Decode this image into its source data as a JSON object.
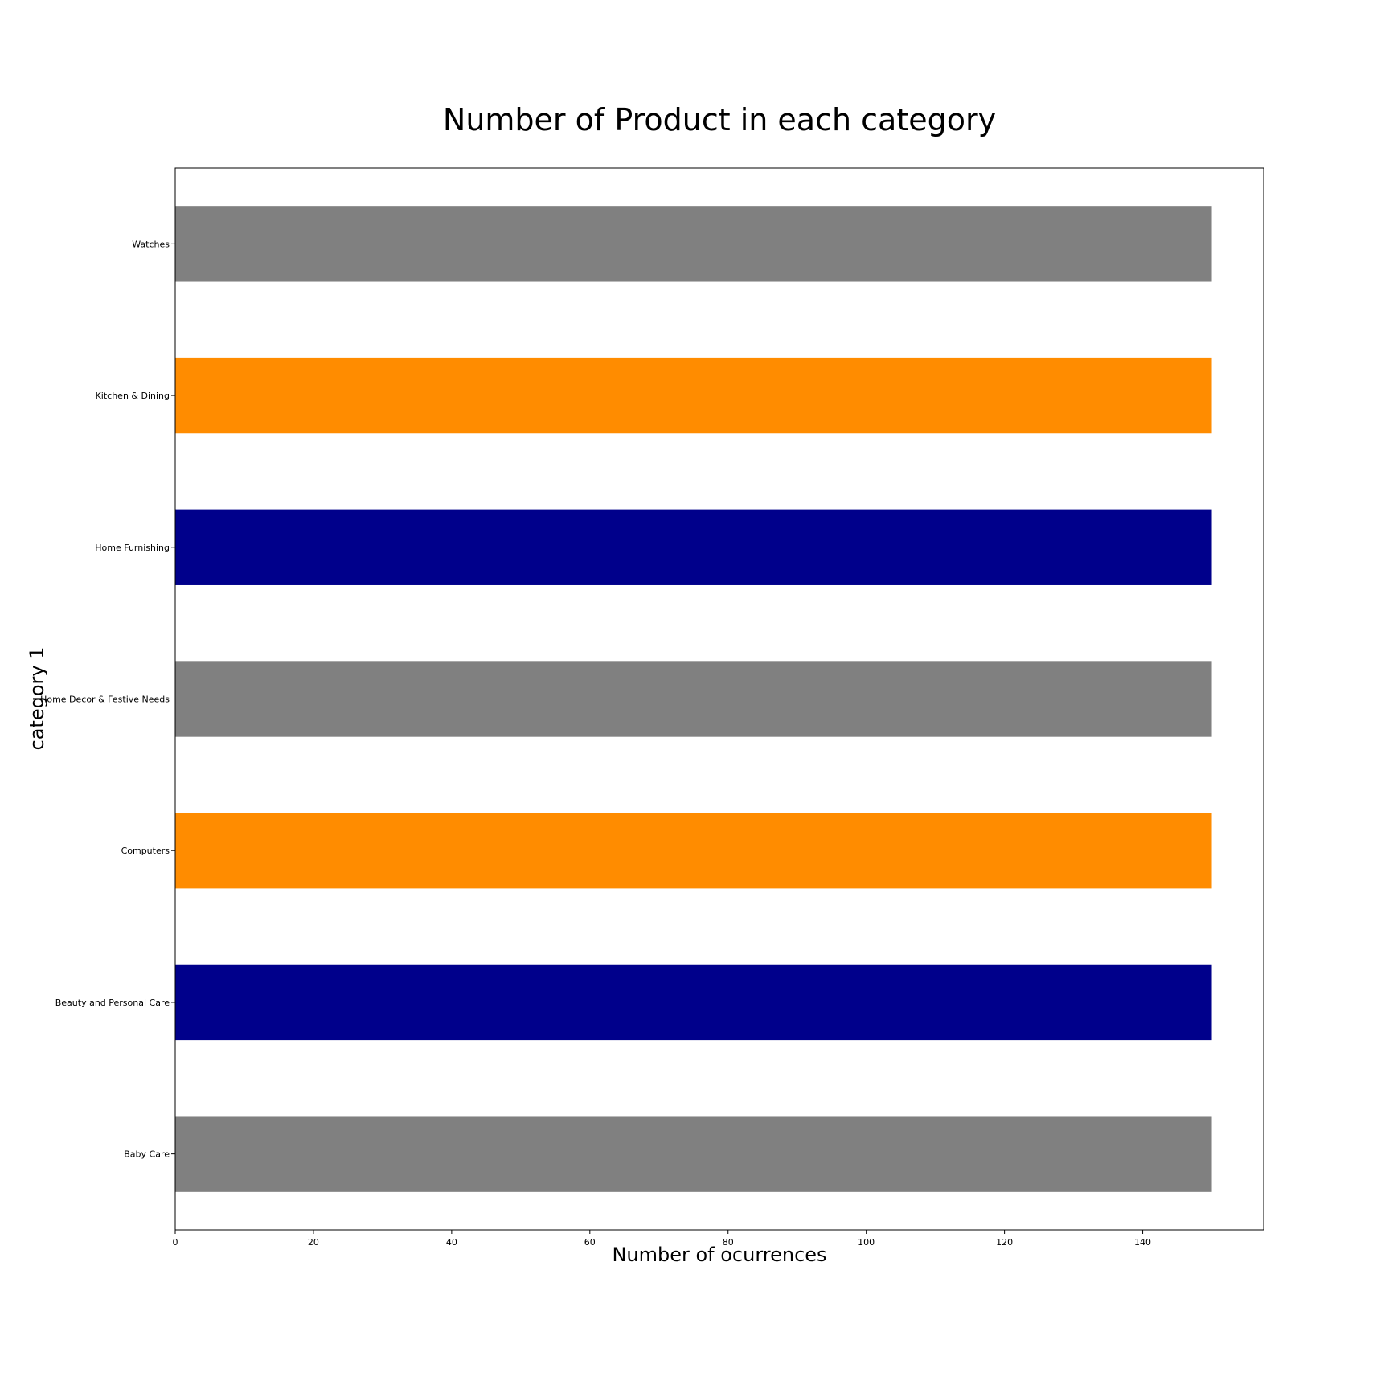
{
  "chart_data": {
    "type": "bar",
    "orientation": "horizontal",
    "title": "Number of Product in each category",
    "xlabel": "Number of ocurrences",
    "ylabel": "category 1",
    "categories": [
      "Baby Care",
      "Beauty and Personal Care",
      "Computers",
      "Home Decor & Festive Needs",
      "Home Furnishing",
      "Kitchen & Dining",
      "Watches"
    ],
    "values": [
      150,
      150,
      150,
      150,
      150,
      150,
      150
    ],
    "bar_colors": [
      "#808080",
      "#00008b",
      "#ff8c00",
      "#808080",
      "#00008b",
      "#ff8c00",
      "#808080"
    ],
    "xlim": [
      0,
      157.5
    ],
    "xticks": [
      0,
      20,
      40,
      60,
      80,
      100,
      120,
      140
    ],
    "grid": false,
    "legend": false
  }
}
